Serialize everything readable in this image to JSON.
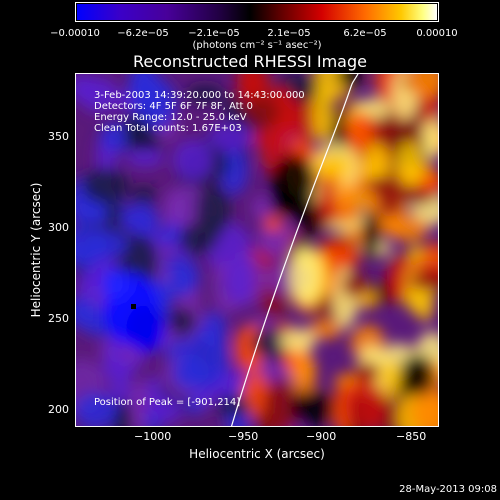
{
  "colorbar": {
    "ticks": [
      "−0.00010",
      "−6.2e−05",
      "−2.1e−05",
      "2.1e−05",
      "6.2e−05",
      "0.00010"
    ],
    "units": "(photons cm⁻² s⁻¹ asec⁻²)"
  },
  "title": "Reconstructed RHESSI Image",
  "info": {
    "time_range": "3-Feb-2003 14:39:20.000 to 14:43:00.000",
    "detectors": "Detectors: 4F 5F 6F 7F 8F, Att 0",
    "energy": "Energy Range: 12.0 - 25.0 keV",
    "clean": "Clean    Total counts: 1.67E+03",
    "peak": "Position of Peak = [-901,214]"
  },
  "axes": {
    "xlabel": "Heliocentric X (arcsec)",
    "ylabel": "Heliocentric Y (arcsec)",
    "xticks": [
      "−1000",
      "−950",
      "−900",
      "−850"
    ],
    "yticks": [
      "350",
      "300",
      "250",
      "200"
    ]
  },
  "footer": {
    "date": "28-May-2013 09:08"
  }
}
